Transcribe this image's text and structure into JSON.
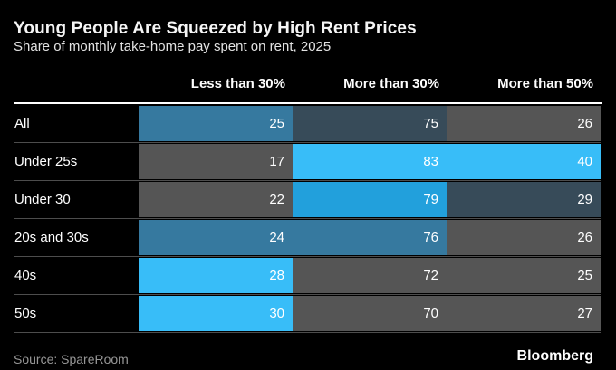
{
  "header": {
    "title": "Young People Are Squeezed by High Rent Prices",
    "subtitle": "Share of monthly take-home pay spent on rent, 2025"
  },
  "footer": {
    "source": "Source: SpareRoom",
    "brand": "Bloomberg"
  },
  "colors": {
    "background": "#000000",
    "header_divider": "#ffffff",
    "row_rule": "#4d4d4d",
    "text_primary": "#ffffff",
    "text_muted": "#979797"
  },
  "chart_data": {
    "type": "heatmap",
    "title": "Young People Are Squeezed by High Rent Prices",
    "subtitle": "Share of monthly take-home pay spent on rent, 2025",
    "columns": [
      "Less than 30%",
      "More than 30%",
      "More than 50%"
    ],
    "rows": [
      {
        "label": "All",
        "values": [
          25,
          75,
          26
        ],
        "cell_colors": [
          "steel",
          "slate",
          "gray"
        ]
      },
      {
        "label": "Under 25s",
        "values": [
          17,
          83,
          40
        ],
        "cell_colors": [
          "gray",
          "bright",
          "bright"
        ]
      },
      {
        "label": "Under 30",
        "values": [
          22,
          79,
          29
        ],
        "cell_colors": [
          "gray",
          "medium",
          "slate"
        ]
      },
      {
        "label": "20s and 30s",
        "values": [
          24,
          76,
          26
        ],
        "cell_colors": [
          "steel",
          "steel",
          "gray"
        ]
      },
      {
        "label": "40s",
        "values": [
          28,
          72,
          25
        ],
        "cell_colors": [
          "bright",
          "gray",
          "gray"
        ]
      },
      {
        "label": "50s",
        "values": [
          30,
          70,
          27
        ],
        "cell_colors": [
          "bright",
          "gray",
          "gray"
        ]
      }
    ],
    "palette": {
      "bright": "#38bdf8",
      "medium": "#22a0dc",
      "steel": "#36799f",
      "slate": "#374b59",
      "gray": "#555555"
    },
    "legend": "none",
    "source": "Source: SpareRoom"
  }
}
